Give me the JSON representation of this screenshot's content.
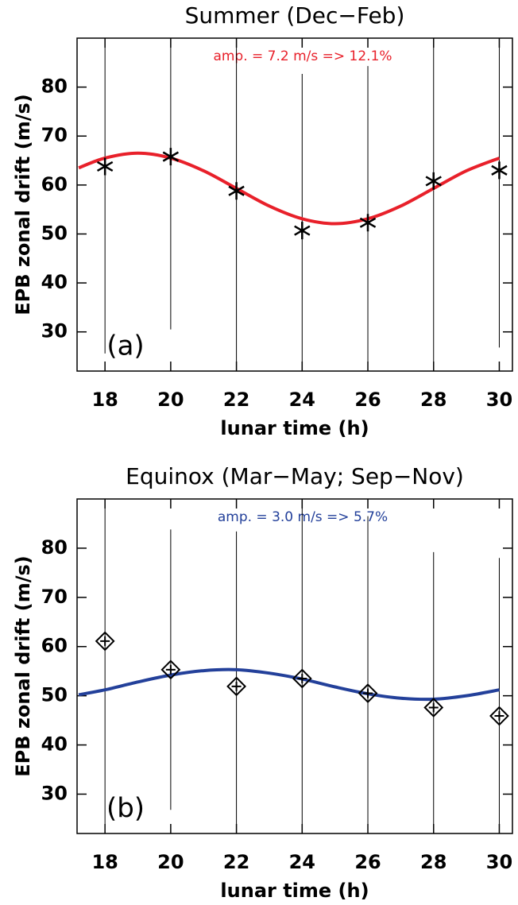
{
  "chart_data": [
    {
      "type": "line",
      "title": "Summer (Dec−Feb)",
      "xlabel": "lunar time (h)",
      "ylabel": "EPB zonal drift (m/s)",
      "annotation": "amp. = 7.2  m/s => 12.1%",
      "annotation_color": "#e8202a",
      "panel_label": "(a)",
      "xlim": [
        17.15,
        30.4
      ],
      "ylim": [
        22,
        90
      ],
      "xticks": [
        18,
        20,
        22,
        24,
        26,
        28,
        30
      ],
      "yticks": [
        30,
        40,
        50,
        60,
        70,
        80
      ],
      "points": {
        "marker": "asterisk",
        "color": "#000000",
        "x": [
          18,
          20,
          22,
          24,
          26,
          28,
          30
        ],
        "values": [
          63.8,
          65.8,
          58.8,
          50.7,
          52.3,
          60.8,
          63.0
        ],
        "errors": [
          38.2,
          35.3,
          38,
          32,
          32,
          37.1,
          36.2
        ]
      },
      "fit": {
        "color": "#e8202a",
        "x": [
          17.2,
          18,
          19,
          20,
          21,
          22,
          23,
          24,
          25,
          26,
          27,
          28,
          29,
          30
        ],
        "values": [
          63.5,
          65.5,
          66.5,
          65.5,
          62.9,
          59.3,
          55.7,
          53.1,
          52.1,
          53.1,
          55.7,
          59.3,
          62.9,
          65.5
        ]
      }
    },
    {
      "type": "line",
      "title": "Equinox (Mar−May; Sep−Nov)",
      "xlabel": "lunar time (h)",
      "ylabel": "EPB zonal drift (m/s)",
      "annotation": "amp. = 3.0  m/s =>  5.7%",
      "annotation_color": "#23409a",
      "panel_label": "(b)",
      "xlim": [
        17.15,
        30.4
      ],
      "ylim": [
        22,
        90
      ],
      "xticks": [
        18,
        20,
        22,
        24,
        26,
        28,
        30
      ],
      "yticks": [
        30,
        40,
        50,
        60,
        70,
        80
      ],
      "points": {
        "marker": "diamond-plus",
        "color": "#000000",
        "x": [
          18,
          20,
          22,
          24,
          26,
          28,
          30
        ],
        "values": [
          61.1,
          55.3,
          51.9,
          53.5,
          50.5,
          47.6,
          45.9
        ],
        "errors": [
          37.2,
          28.5,
          31.5,
          36,
          36,
          31.6,
          32.1
        ]
      },
      "fit": {
        "color": "#23409a",
        "x": [
          17.2,
          18,
          19,
          20,
          21,
          22,
          23,
          24,
          25,
          26,
          27,
          28,
          29,
          30
        ],
        "values": [
          50.2,
          51.2,
          52.8,
          54.2,
          55.1,
          55.3,
          54.6,
          53.4,
          51.8,
          50.4,
          49.5,
          49.3,
          50.0,
          51.2
        ]
      }
    }
  ]
}
